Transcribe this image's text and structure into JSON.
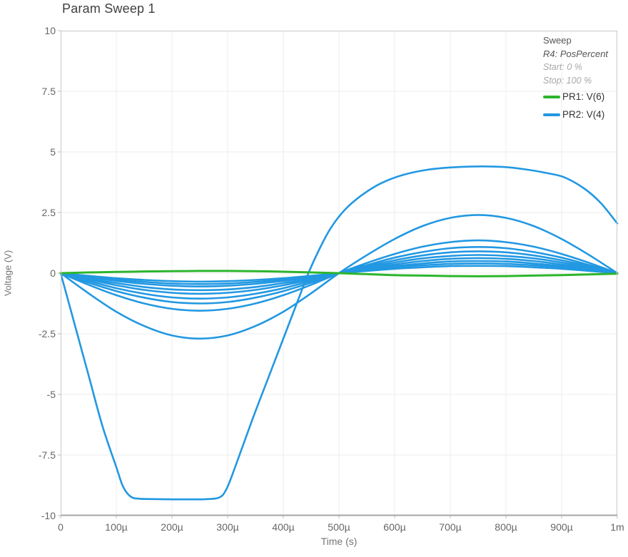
{
  "title": "Param Sweep 1",
  "colors": {
    "pr1_green": "#2db52d",
    "pr2_blue": "#2298e2",
    "grid": "#ededed",
    "plot_border": "#c9c9c9",
    "plot_border_bottom": "#a6a6a6",
    "tick_mark": "#bbbbbb",
    "tick_text": "#666666",
    "axis_title_text": "#757575",
    "title_text": "#404040"
  },
  "legend": {
    "sweep_label": "Sweep",
    "param_label": "R4: PosPercent",
    "start_label": "Start: 0 %",
    "stop_label": "Stop: 100 %",
    "series": [
      {
        "name": "PR1: V(6)",
        "color": "#2db52d"
      },
      {
        "name": "PR2: V(4)",
        "color": "#2298e2"
      }
    ]
  },
  "chart_data": {
    "type": "line",
    "title": "Param Sweep 1",
    "xlabel": "Time (s)",
    "ylabel": "Voltage (V)",
    "xlim_us": [
      0,
      1000
    ],
    "ylim": [
      -10,
      10
    ],
    "grid": true,
    "legend_position": "top-right",
    "sweep_info": {
      "parameter": "R4: PosPercent",
      "start": "0 %",
      "stop": "100 %"
    },
    "x_ticks": [
      {
        "t_us": 0,
        "label": "0"
      },
      {
        "t_us": 100,
        "label": "100µ"
      },
      {
        "t_us": 200,
        "label": "200µ"
      },
      {
        "t_us": 300,
        "label": "300µ"
      },
      {
        "t_us": 400,
        "label": "400µ"
      },
      {
        "t_us": 500,
        "label": "500µ"
      },
      {
        "t_us": 600,
        "label": "600µ"
      },
      {
        "t_us": 700,
        "label": "700µ"
      },
      {
        "t_us": 800,
        "label": "800µ"
      },
      {
        "t_us": 900,
        "label": "900µ"
      },
      {
        "t_us": 1000,
        "label": "1m"
      }
    ],
    "y_ticks": [
      {
        "v": 10,
        "label": "10"
      },
      {
        "v": 7.5,
        "label": "7.5"
      },
      {
        "v": 5,
        "label": "5"
      },
      {
        "v": 2.5,
        "label": "2.5"
      },
      {
        "v": 0,
        "label": "0"
      },
      {
        "v": -2.5,
        "label": "-2.5"
      },
      {
        "v": -5,
        "label": "-5"
      },
      {
        "v": -7.5,
        "label": "-7.5"
      },
      {
        "v": -10,
        "label": "-10"
      }
    ],
    "series": [
      {
        "name": "PR1: V(6)",
        "color": "#2db52d",
        "stroke_width": 3,
        "points_us_v": [
          [
            0,
            0
          ],
          [
            50,
            0.03
          ],
          [
            100,
            0.05
          ],
          [
            150,
            0.07
          ],
          [
            200,
            0.08
          ],
          [
            250,
            0.09
          ],
          [
            300,
            0.09
          ],
          [
            350,
            0.08
          ],
          [
            400,
            0.06
          ],
          [
            450,
            0.03
          ],
          [
            500,
            0
          ],
          [
            550,
            -0.04
          ],
          [
            600,
            -0.08
          ],
          [
            650,
            -0.1
          ],
          [
            700,
            -0.12
          ],
          [
            750,
            -0.13
          ],
          [
            800,
            -0.12
          ],
          [
            850,
            -0.1
          ],
          [
            900,
            -0.08
          ],
          [
            950,
            -0.05
          ],
          [
            1000,
            -0.02
          ]
        ]
      },
      {
        "name": "PR2: V(4)",
        "color": "#2298e2",
        "stroke_width": 2.6,
        "traces_us_v": [
          [
            [
              0,
              0
            ],
            [
              50,
              -0.11
            ],
            [
              100,
              -0.21
            ],
            [
              150,
              -0.28
            ],
            [
              200,
              -0.33
            ],
            [
              250,
              -0.35
            ],
            [
              300,
              -0.33
            ],
            [
              350,
              -0.28
            ],
            [
              400,
              -0.21
            ],
            [
              450,
              -0.11
            ],
            [
              500,
              0
            ],
            [
              550,
              0.09
            ],
            [
              600,
              0.18
            ],
            [
              650,
              0.24
            ],
            [
              700,
              0.29
            ],
            [
              750,
              0.3
            ],
            [
              800,
              0.29
            ],
            [
              850,
              0.24
            ],
            [
              900,
              0.18
            ],
            [
              950,
              0.09
            ],
            [
              1000,
              0
            ]
          ],
          [
            [
              0,
              0
            ],
            [
              50,
              -0.14
            ],
            [
              100,
              -0.26
            ],
            [
              150,
              -0.36
            ],
            [
              200,
              -0.43
            ],
            [
              250,
              -0.45
            ],
            [
              300,
              -0.43
            ],
            [
              350,
              -0.36
            ],
            [
              400,
              -0.26
            ],
            [
              450,
              -0.14
            ],
            [
              500,
              0
            ],
            [
              550,
              0.12
            ],
            [
              600,
              0.24
            ],
            [
              650,
              0.32
            ],
            [
              700,
              0.38
            ],
            [
              750,
              0.4
            ],
            [
              800,
              0.38
            ],
            [
              850,
              0.32
            ],
            [
              900,
              0.24
            ],
            [
              950,
              0.12
            ],
            [
              1000,
              0
            ]
          ],
          [
            [
              0,
              0
            ],
            [
              50,
              -0.17
            ],
            [
              100,
              -0.32
            ],
            [
              150,
              -0.44
            ],
            [
              200,
              -0.52
            ],
            [
              250,
              -0.55
            ],
            [
              300,
              -0.52
            ],
            [
              350,
              -0.44
            ],
            [
              400,
              -0.32
            ],
            [
              450,
              -0.17
            ],
            [
              500,
              0
            ],
            [
              550,
              0.15
            ],
            [
              600,
              0.29
            ],
            [
              650,
              0.4
            ],
            [
              700,
              0.48
            ],
            [
              750,
              0.5
            ],
            [
              800,
              0.48
            ],
            [
              850,
              0.4
            ],
            [
              900,
              0.29
            ],
            [
              950,
              0.15
            ],
            [
              1000,
              0
            ]
          ],
          [
            [
              0,
              0
            ],
            [
              50,
              -0.22
            ],
            [
              100,
              -0.41
            ],
            [
              150,
              -0.57
            ],
            [
              200,
              -0.67
            ],
            [
              250,
              -0.7
            ],
            [
              300,
              -0.67
            ],
            [
              350,
              -0.57
            ],
            [
              400,
              -0.41
            ],
            [
              450,
              -0.22
            ],
            [
              500,
              0
            ],
            [
              550,
              0.19
            ],
            [
              600,
              0.36
            ],
            [
              650,
              0.5
            ],
            [
              700,
              0.59
            ],
            [
              750,
              0.62
            ],
            [
              800,
              0.59
            ],
            [
              850,
              0.5
            ],
            [
              900,
              0.36
            ],
            [
              950,
              0.19
            ],
            [
              1000,
              0
            ]
          ],
          [
            [
              0,
              0
            ],
            [
              50,
              -0.26
            ],
            [
              100,
              -0.5
            ],
            [
              150,
              -0.69
            ],
            [
              200,
              -0.81
            ],
            [
              250,
              -0.85
            ],
            [
              300,
              -0.81
            ],
            [
              350,
              -0.69
            ],
            [
              400,
              -0.5
            ],
            [
              450,
              -0.26
            ],
            [
              500,
              0
            ],
            [
              550,
              0.23
            ],
            [
              600,
              0.44
            ],
            [
              650,
              0.61
            ],
            [
              700,
              0.71
            ],
            [
              750,
              0.75
            ],
            [
              800,
              0.71
            ],
            [
              850,
              0.61
            ],
            [
              900,
              0.44
            ],
            [
              950,
              0.23
            ],
            [
              1000,
              0
            ]
          ],
          [
            [
              0,
              0
            ],
            [
              50,
              -0.32
            ],
            [
              100,
              -0.62
            ],
            [
              150,
              -0.85
            ],
            [
              200,
              -1.0
            ],
            [
              250,
              -1.05
            ],
            [
              300,
              -1.0
            ],
            [
              350,
              -0.85
            ],
            [
              400,
              -0.62
            ],
            [
              450,
              -0.32
            ],
            [
              500,
              0
            ],
            [
              550,
              0.28
            ],
            [
              600,
              0.53
            ],
            [
              650,
              0.73
            ],
            [
              700,
              0.86
            ],
            [
              750,
              0.9
            ],
            [
              800,
              0.86
            ],
            [
              850,
              0.73
            ],
            [
              900,
              0.53
            ],
            [
              950,
              0.28
            ],
            [
              1000,
              0
            ]
          ],
          [
            [
              0,
              0
            ],
            [
              50,
              -0.39
            ],
            [
              100,
              -0.74
            ],
            [
              150,
              -1.01
            ],
            [
              200,
              -1.19
            ],
            [
              250,
              -1.25
            ],
            [
              300,
              -1.19
            ],
            [
              350,
              -1.01
            ],
            [
              400,
              -0.74
            ],
            [
              450,
              -0.39
            ],
            [
              500,
              0
            ],
            [
              550,
              0.33
            ],
            [
              600,
              0.64
            ],
            [
              650,
              0.87
            ],
            [
              700,
              1.03
            ],
            [
              750,
              1.08
            ],
            [
              800,
              1.03
            ],
            [
              850,
              0.87
            ],
            [
              900,
              0.64
            ],
            [
              950,
              0.33
            ],
            [
              1000,
              0
            ]
          ],
          [
            [
              0,
              0
            ],
            [
              50,
              -0.48
            ],
            [
              100,
              -0.91
            ],
            [
              150,
              -1.25
            ],
            [
              200,
              -1.47
            ],
            [
              250,
              -1.55
            ],
            [
              300,
              -1.47
            ],
            [
              350,
              -1.25
            ],
            [
              400,
              -0.91
            ],
            [
              450,
              -0.48
            ],
            [
              500,
              0
            ],
            [
              550,
              0.42
            ],
            [
              600,
              0.79
            ],
            [
              650,
              1.09
            ],
            [
              700,
              1.28
            ],
            [
              750,
              1.35
            ],
            [
              800,
              1.28
            ],
            [
              850,
              1.09
            ],
            [
              900,
              0.79
            ],
            [
              950,
              0.42
            ],
            [
              1000,
              0
            ]
          ],
          [
            [
              0,
              0
            ],
            [
              50,
              -0.83
            ],
            [
              100,
              -1.59
            ],
            [
              150,
              -2.18
            ],
            [
              200,
              -2.57
            ],
            [
              250,
              -2.7
            ],
            [
              300,
              -2.57
            ],
            [
              350,
              -2.18
            ],
            [
              400,
              -1.59
            ],
            [
              450,
              -0.83
            ],
            [
              500,
              0
            ],
            [
              550,
              0.74
            ],
            [
              600,
              1.41
            ],
            [
              650,
              1.94
            ],
            [
              700,
              2.28
            ],
            [
              750,
              2.4
            ],
            [
              800,
              2.28
            ],
            [
              850,
              1.94
            ],
            [
              900,
              1.41
            ],
            [
              950,
              0.74
            ],
            [
              1000,
              0
            ]
          ],
          [
            [
              0,
              0
            ],
            [
              25,
              -2.1
            ],
            [
              50,
              -4.2
            ],
            [
              75,
              -6.3
            ],
            [
              100,
              -8.0
            ],
            [
              112,
              -8.8
            ],
            [
              125,
              -9.2
            ],
            [
              140,
              -9.3
            ],
            [
              180,
              -9.32
            ],
            [
              220,
              -9.33
            ],
            [
              260,
              -9.32
            ],
            [
              285,
              -9.25
            ],
            [
              298,
              -8.9
            ],
            [
              315,
              -7.9
            ],
            [
              345,
              -6.0
            ],
            [
              375,
              -4.2
            ],
            [
              405,
              -2.4
            ],
            [
              430,
              -0.9
            ],
            [
              445,
              0
            ],
            [
              465,
              1.0
            ],
            [
              485,
              1.85
            ],
            [
              510,
              2.6
            ],
            [
              540,
              3.2
            ],
            [
              575,
              3.7
            ],
            [
              615,
              4.05
            ],
            [
              655,
              4.25
            ],
            [
              695,
              4.35
            ],
            [
              745,
              4.4
            ],
            [
              795,
              4.38
            ],
            [
              835,
              4.28
            ],
            [
              875,
              4.12
            ],
            [
              905,
              3.95
            ],
            [
              940,
              3.5
            ],
            [
              970,
              2.9
            ],
            [
              1000,
              2.05
            ]
          ]
        ]
      }
    ]
  }
}
